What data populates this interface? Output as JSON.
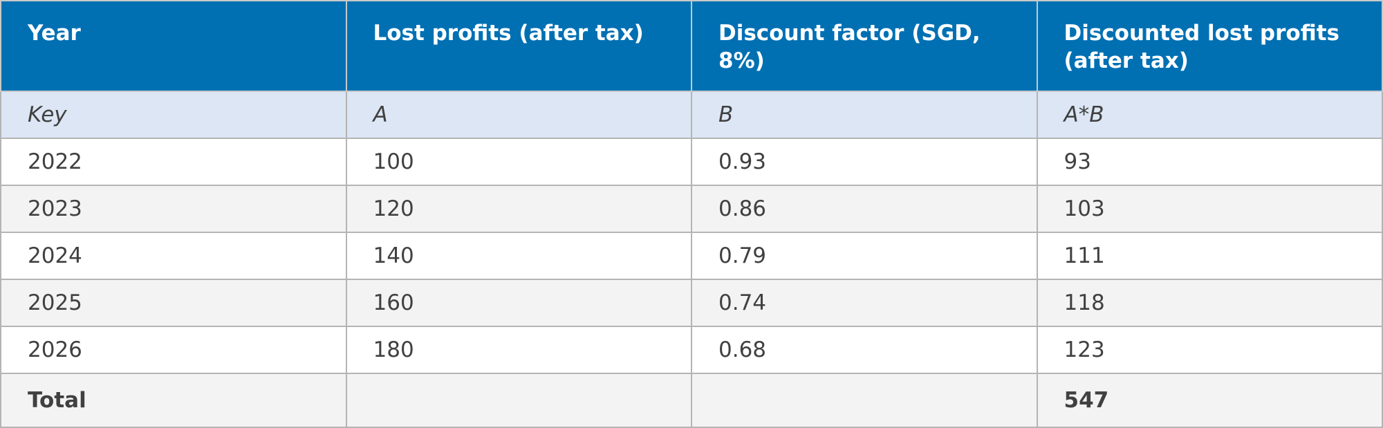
{
  "table": {
    "header": [
      "Year",
      "Lost profits (after tax)",
      "Discount factor (SGD, 8%)",
      "Discounted lost profits (after tax)"
    ],
    "key": [
      "Key",
      "A",
      "B",
      "A*B"
    ],
    "rows": [
      [
        "2022",
        "100",
        "0.93",
        "93"
      ],
      [
        "2023",
        "120",
        "0.86",
        "103"
      ],
      [
        "2024",
        "140",
        "0.79",
        "111"
      ],
      [
        "2025",
        "160",
        "0.74",
        "118"
      ],
      [
        "2026",
        "180",
        "0.68",
        "123"
      ]
    ],
    "total": {
      "label": "Total",
      "value": "547"
    }
  }
}
